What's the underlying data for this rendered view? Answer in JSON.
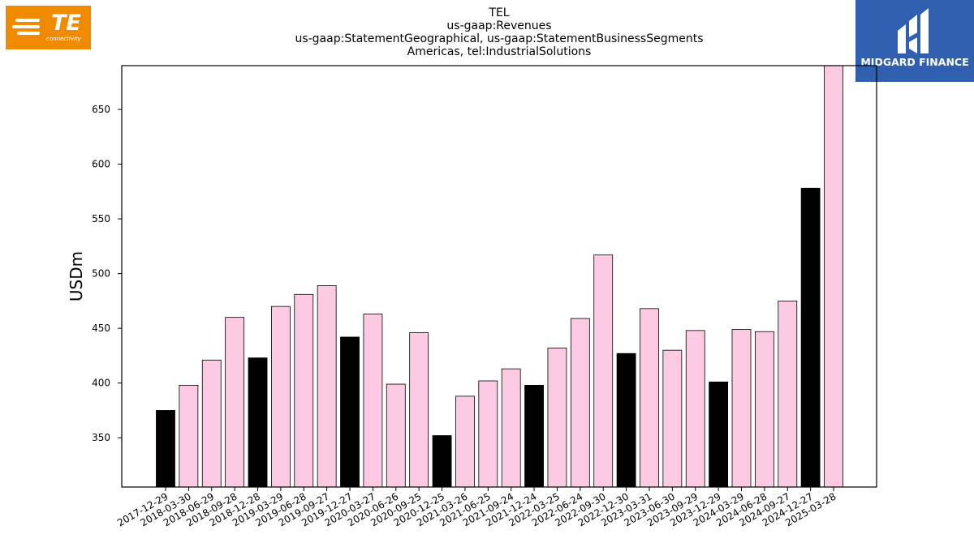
{
  "logos": {
    "left": {
      "text": "TE",
      "subtext": "connectivity",
      "color": "#f08a00"
    },
    "right": {
      "text": "MIDGARD FINANCE",
      "color": "#2f5fae"
    }
  },
  "chart_data": {
    "type": "bar",
    "title": [
      "TEL",
      "us-gaap:Revenues",
      "us-gaap:StatementGeographical, us-gaap:StatementBusinessSegments",
      "Americas, tel:IndustrialSolutions"
    ],
    "xlabel": "",
    "ylabel": "USDm",
    "ylim": [
      305,
      690
    ],
    "yticks": [
      350,
      400,
      450,
      500,
      550,
      600,
      650
    ],
    "grid": false,
    "categories": [
      "2017-12-29",
      "2018-03-30",
      "2018-06-29",
      "2018-09-28",
      "2018-12-28",
      "2019-03-29",
      "2019-06-28",
      "2019-09-27",
      "2019-12-27",
      "2020-03-27",
      "2020-06-26",
      "2020-09-25",
      "2020-12-25",
      "2021-03-26",
      "2021-06-25",
      "2021-09-24",
      "2021-12-24",
      "2022-03-25",
      "2022-06-24",
      "2022-09-30",
      "2022-12-30",
      "2023-03-31",
      "2023-06-30",
      "2023-09-29",
      "2023-12-29",
      "2024-03-29",
      "2024-06-28",
      "2024-09-27",
      "2024-12-27",
      "2025-03-28"
    ],
    "values": [
      375,
      398,
      421,
      460,
      423,
      470,
      481,
      489,
      442,
      463,
      399,
      446,
      352,
      388,
      402,
      413,
      398,
      432,
      459,
      517,
      427,
      468,
      430,
      448,
      401,
      449,
      447,
      475,
      578,
      690
    ],
    "highlight": [
      true,
      false,
      false,
      false,
      true,
      false,
      false,
      false,
      true,
      false,
      false,
      false,
      true,
      false,
      false,
      false,
      true,
      false,
      false,
      false,
      true,
      false,
      false,
      false,
      true,
      false,
      false,
      false,
      true,
      false
    ],
    "colors": {
      "highlight": "#000000",
      "normal": "#fccae2",
      "edge": "#000000"
    }
  }
}
